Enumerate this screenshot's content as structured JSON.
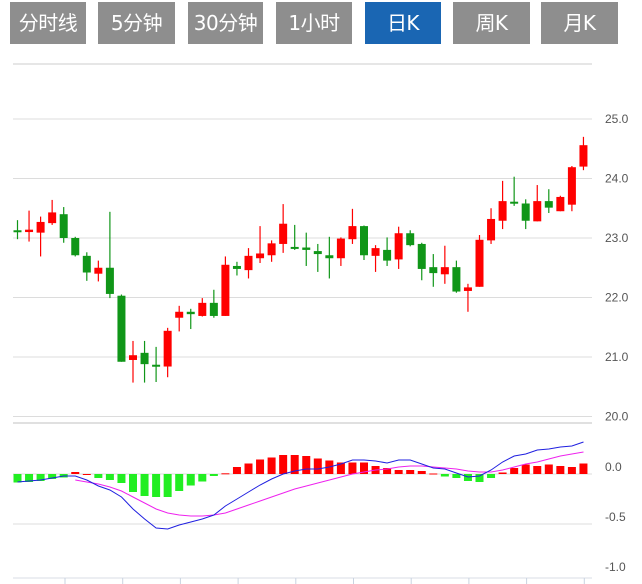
{
  "tabs": [
    {
      "label": "分时线",
      "active": false
    },
    {
      "label": "5分钟",
      "active": false
    },
    {
      "label": "30分钟",
      "active": false
    },
    {
      "label": "1小时",
      "active": false
    },
    {
      "label": "日K",
      "active": true
    },
    {
      "label": "周K",
      "active": false
    },
    {
      "label": "月K",
      "active": false
    }
  ],
  "colors": {
    "up": "#ff0000",
    "down": "#109618",
    "hist_up": "#ff0000",
    "hist_down": "#22ee22",
    "dif": "#1f1fe0",
    "dea": "#ee22ee",
    "tab_bg": "#8e8e8e",
    "tab_active": "#1a66b3"
  },
  "chart_data": [
    {
      "type": "candlestick",
      "title": "",
      "ylim": [
        19.9,
        25.2
      ],
      "y_ticks": [
        "25.0",
        "24.0",
        "23.0",
        "22.0",
        "21.0",
        "20.0"
      ],
      "y_tick_values": [
        25,
        24,
        23,
        22,
        21,
        20
      ],
      "ohlc": [
        [
          23.13,
          23.3,
          22.98,
          23.1
        ],
        [
          23.1,
          23.46,
          22.94,
          23.14
        ],
        [
          23.09,
          23.36,
          22.69,
          23.27
        ],
        [
          23.25,
          23.64,
          23.22,
          23.43
        ],
        [
          23.4,
          23.52,
          22.92,
          23.0
        ],
        [
          23.0,
          23.02,
          22.69,
          22.71
        ],
        [
          22.7,
          22.76,
          22.28,
          22.42
        ],
        [
          22.4,
          22.62,
          22.27,
          22.5
        ],
        [
          22.5,
          23.44,
          21.99,
          22.06
        ],
        [
          22.03,
          22.05,
          20.92,
          20.92
        ],
        [
          20.95,
          21.27,
          20.57,
          21.03
        ],
        [
          21.07,
          21.27,
          20.57,
          20.88
        ],
        [
          20.87,
          21.17,
          20.58,
          20.85
        ],
        [
          20.84,
          21.49,
          20.66,
          21.44
        ],
        [
          21.66,
          21.86,
          21.43,
          21.76
        ],
        [
          21.76,
          21.81,
          21.47,
          21.72
        ],
        [
          21.69,
          21.99,
          21.68,
          21.91
        ],
        [
          21.91,
          22.13,
          21.66,
          21.69
        ],
        [
          21.69,
          22.69,
          21.69,
          22.55
        ],
        [
          22.53,
          22.6,
          22.37,
          22.48
        ],
        [
          22.46,
          22.83,
          22.32,
          22.7
        ],
        [
          22.66,
          23.2,
          22.58,
          22.74
        ],
        [
          22.71,
          22.96,
          22.6,
          22.91
        ],
        [
          22.9,
          23.57,
          22.75,
          23.24
        ],
        [
          22.85,
          23.22,
          22.8,
          22.84
        ],
        [
          22.84,
          23.09,
          22.53,
          22.8
        ],
        [
          22.78,
          22.9,
          22.43,
          22.73
        ],
        [
          22.71,
          23.02,
          22.32,
          22.66
        ],
        [
          22.66,
          23.01,
          22.53,
          22.99
        ],
        [
          22.98,
          23.49,
          22.9,
          23.2
        ],
        [
          23.2,
          23.21,
          22.63,
          22.71
        ],
        [
          22.7,
          22.88,
          22.43,
          22.83
        ],
        [
          22.8,
          23.01,
          22.53,
          22.62
        ],
        [
          22.64,
          23.19,
          22.48,
          23.08
        ],
        [
          23.08,
          23.13,
          22.86,
          22.88
        ],
        [
          22.9,
          22.92,
          22.29,
          22.48
        ],
        [
          22.51,
          22.73,
          22.18,
          22.41
        ],
        [
          22.39,
          22.87,
          22.23,
          22.51
        ],
        [
          22.51,
          22.62,
          22.08,
          22.1
        ],
        [
          22.11,
          22.23,
          21.76,
          22.17
        ],
        [
          22.18,
          23.05,
          22.18,
          22.97
        ],
        [
          22.96,
          23.5,
          22.9,
          23.32
        ],
        [
          23.29,
          23.96,
          23.15,
          23.62
        ],
        [
          23.61,
          24.03,
          23.54,
          23.59
        ],
        [
          23.58,
          23.65,
          23.15,
          23.29
        ],
        [
          23.28,
          23.89,
          23.28,
          23.62
        ],
        [
          23.62,
          23.82,
          23.42,
          23.51
        ],
        [
          23.45,
          23.71,
          23.45,
          23.69
        ],
        [
          23.56,
          24.21,
          23.45,
          24.19
        ],
        [
          24.2,
          24.7,
          24.14,
          24.56
        ]
      ]
    },
    {
      "type": "macd",
      "ylim": [
        -1.0,
        0.45
      ],
      "y_ticks": [
        "0.0",
        "-0.5",
        "-1.0"
      ],
      "y_tick_values": [
        0,
        -0.5,
        -1.0
      ],
      "histogram": [
        -0.085,
        -0.08,
        -0.07,
        -0.05,
        -0.035,
        0.02,
        0.0,
        -0.04,
        -0.06,
        -0.09,
        -0.18,
        -0.22,
        -0.23,
        -0.23,
        -0.17,
        -0.115,
        -0.075,
        -0.02,
        0.007,
        0.07,
        0.105,
        0.145,
        0.165,
        0.19,
        0.19,
        0.18,
        0.155,
        0.135,
        0.115,
        0.115,
        0.115,
        0.08,
        0.06,
        0.04,
        0.04,
        0.03,
        0.005,
        -0.025,
        -0.04,
        -0.07,
        -0.08,
        -0.04,
        0.015,
        0.06,
        0.095,
        0.08,
        0.095,
        0.08,
        0.07,
        0.105
      ],
      "dif": [
        -0.08,
        -0.07,
        -0.06,
        -0.04,
        -0.02,
        -0.02,
        -0.06,
        -0.12,
        -0.16,
        -0.23,
        -0.35,
        -0.45,
        -0.54,
        -0.55,
        -0.51,
        -0.48,
        -0.45,
        -0.41,
        -0.32,
        -0.25,
        -0.18,
        -0.11,
        -0.05,
        0.0,
        0.03,
        0.05,
        0.05,
        0.07,
        0.1,
        0.14,
        0.14,
        0.13,
        0.11,
        0.14,
        0.14,
        0.1,
        0.06,
        0.05,
        0.01,
        -0.03,
        -0.02,
        0.04,
        0.12,
        0.18,
        0.2,
        0.24,
        0.25,
        0.27,
        0.28,
        0.32
      ],
      "dea": [
        null,
        null,
        null,
        null,
        null,
        -0.06,
        -0.08,
        -0.1,
        -0.13,
        -0.17,
        -0.23,
        -0.29,
        -0.35,
        -0.39,
        -0.41,
        -0.42,
        -0.42,
        -0.41,
        -0.39,
        -0.35,
        -0.31,
        -0.27,
        -0.23,
        -0.19,
        -0.15,
        -0.12,
        -0.09,
        -0.06,
        -0.03,
        0.0,
        0.02,
        0.04,
        0.05,
        0.07,
        0.08,
        0.08,
        0.07,
        0.06,
        0.05,
        0.03,
        0.02,
        0.02,
        0.04,
        0.07,
        0.1,
        0.12,
        0.15,
        0.18,
        0.2,
        0.22
      ]
    }
  ]
}
